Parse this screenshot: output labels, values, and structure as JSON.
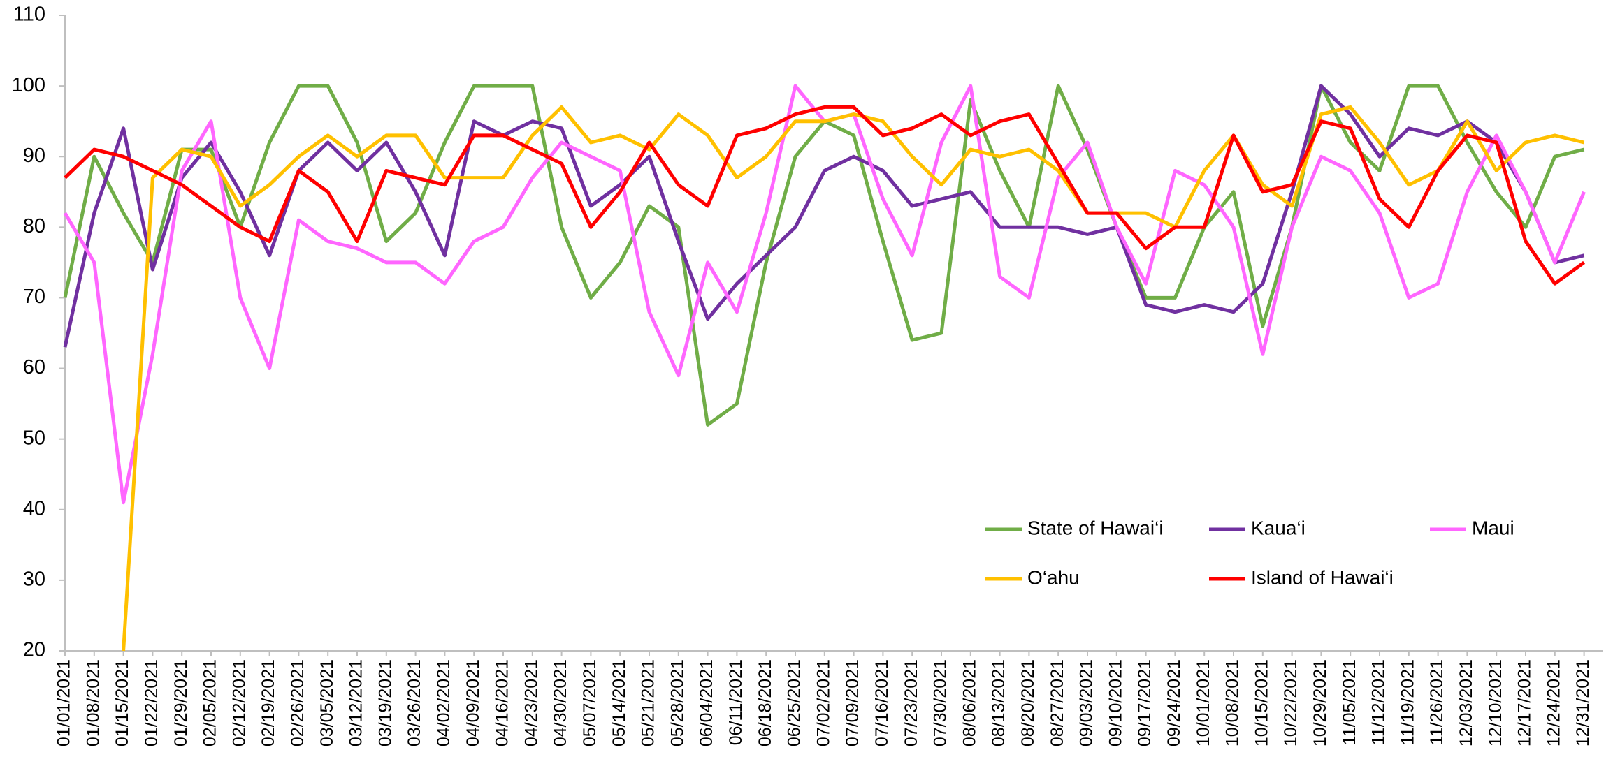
{
  "chart_data": {
    "type": "line",
    "x": [
      "01/01/2021",
      "01/08/2021",
      "01/15/2021",
      "01/22/2021",
      "01/29/2021",
      "02/05/2021",
      "02/12/2021",
      "02/19/2021",
      "02/26/2021",
      "03/05/2021",
      "03/12/2021",
      "03/19/2021",
      "03/26/2021",
      "04/02/2021",
      "04/09/2021",
      "04/16/2021",
      "04/23/2021",
      "04/30/2021",
      "05/07/2021",
      "05/14/2021",
      "05/21/2021",
      "05/28/2021",
      "06/04/2021",
      "06/11/2021",
      "06/18/2021",
      "06/25/2021",
      "07/02/2021",
      "07/09/2021",
      "07/16/2021",
      "07/23/2021",
      "07/30/2021",
      "08/06/2021",
      "08/13/2021",
      "08/20/2021",
      "08/27/2021",
      "09/03/2021",
      "09/10/2021",
      "09/17/2021",
      "09/24/2021",
      "10/01/2021",
      "10/08/2021",
      "10/15/2021",
      "10/22/2021",
      "10/29/2021",
      "11/05/2021",
      "11/12/2021",
      "11/19/2021",
      "11/26/2021",
      "12/03/2021",
      "12/10/2021",
      "12/17/2021",
      "12/24/2021",
      "12/31/2021"
    ],
    "series": [
      {
        "name": "State of Hawai‘i",
        "color": "#70ad47",
        "values": [
          70,
          90,
          82,
          75,
          91,
          91,
          80,
          92,
          100,
          100,
          92,
          78,
          82,
          92,
          100,
          100,
          100,
          80,
          70,
          75,
          83,
          80,
          52,
          55,
          75,
          90,
          95,
          93,
          78,
          64,
          65,
          98,
          88,
          80,
          100,
          91,
          80,
          70,
          70,
          80,
          85,
          66,
          80,
          100,
          92,
          88,
          100,
          100,
          92,
          85,
          80,
          90,
          91
        ]
      },
      {
        "name": "Kaua‘i",
        "color": "#7030a0",
        "values": [
          63,
          82,
          94,
          74,
          87,
          92,
          85,
          76,
          88,
          92,
          88,
          92,
          85,
          76,
          95,
          93,
          95,
          94,
          83,
          86,
          90,
          78,
          67,
          72,
          76,
          80,
          88,
          90,
          88,
          83,
          84,
          85,
          80,
          80,
          80,
          79,
          80,
          69,
          68,
          69,
          68,
          72,
          85,
          100,
          96,
          90,
          94,
          93,
          95,
          92,
          85,
          75,
          76
        ]
      },
      {
        "name": "Maui",
        "color": "#ff66ff",
        "values": [
          82,
          75,
          41,
          62,
          88,
          95,
          70,
          60,
          81,
          78,
          77,
          75,
          75,
          72,
          78,
          80,
          87,
          92,
          90,
          88,
          68,
          59,
          75,
          68,
          82,
          100,
          95,
          96,
          84,
          76,
          92,
          100,
          73,
          70,
          87,
          92,
          80,
          72,
          88,
          86,
          80,
          62,
          80,
          90,
          88,
          82,
          70,
          72,
          85,
          93,
          85,
          75,
          85
        ]
      },
      {
        "name": "O‘ahu",
        "color": "#ffc000",
        "values": [
          null,
          null,
          20,
          87,
          91,
          90,
          83,
          86,
          90,
          93,
          90,
          93,
          93,
          87,
          87,
          87,
          93,
          97,
          92,
          93,
          91,
          96,
          93,
          87,
          90,
          95,
          95,
          96,
          95,
          90,
          86,
          91,
          90,
          91,
          88,
          82,
          82,
          82,
          80,
          88,
          93,
          86,
          83,
          96,
          97,
          92,
          86,
          88,
          95,
          88,
          92,
          93,
          92
        ]
      },
      {
        "name": "Island of Hawai‘i",
        "color": "#ff0000",
        "values": [
          87,
          91,
          90,
          88,
          86,
          83,
          80,
          78,
          88,
          85,
          78,
          88,
          87,
          86,
          93,
          93,
          91,
          89,
          80,
          85,
          92,
          86,
          83,
          93,
          94,
          96,
          97,
          97,
          93,
          94,
          96,
          93,
          95,
          96,
          89,
          82,
          82,
          77,
          80,
          80,
          93,
          85,
          86,
          95,
          94,
          84,
          80,
          88,
          93,
          92,
          78,
          72,
          75
        ]
      }
    ],
    "ylim": [
      20,
      110
    ],
    "yticks": [
      20,
      30,
      40,
      50,
      60,
      70,
      80,
      90,
      100,
      110
    ],
    "grid": false
  }
}
